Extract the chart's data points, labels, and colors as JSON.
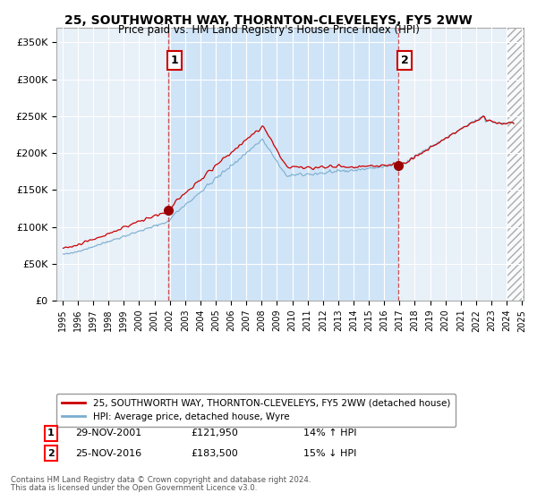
{
  "title": "25, SOUTHWORTH WAY, THORNTON-CLEVELEYS, FY5 2WW",
  "subtitle": "Price paid vs. HM Land Registry's House Price Index (HPI)",
  "ylim": [
    0,
    370000
  ],
  "yticks": [
    0,
    50000,
    100000,
    150000,
    200000,
    250000,
    300000,
    350000
  ],
  "ytick_labels": [
    "£0",
    "£50K",
    "£100K",
    "£150K",
    "£200K",
    "£250K",
    "£300K",
    "£350K"
  ],
  "plot_bg_color": "#e8f0f8",
  "shaded_bg_color": "#d0e4f7",
  "grid_color": "#ffffff",
  "sale1_price": 121950,
  "sale1_year": 2001.917,
  "sale1_date_str": "29-NOV-2001",
  "sale1_hpi_pct": "14% ↑ HPI",
  "sale2_price": 183500,
  "sale2_year": 2016.917,
  "sale2_date_str": "25-NOV-2016",
  "sale2_hpi_pct": "15% ↓ HPI",
  "legend_line1": "25, SOUTHWORTH WAY, THORNTON-CLEVELEYS, FY5 2WW (detached house)",
  "legend_line2": "HPI: Average price, detached house, Wyre",
  "footer1": "Contains HM Land Registry data © Crown copyright and database right 2024.",
  "footer2": "This data is licensed under the Open Government Licence v3.0.",
  "line_color_red": "#cc0000",
  "line_color_blue": "#7aadce"
}
